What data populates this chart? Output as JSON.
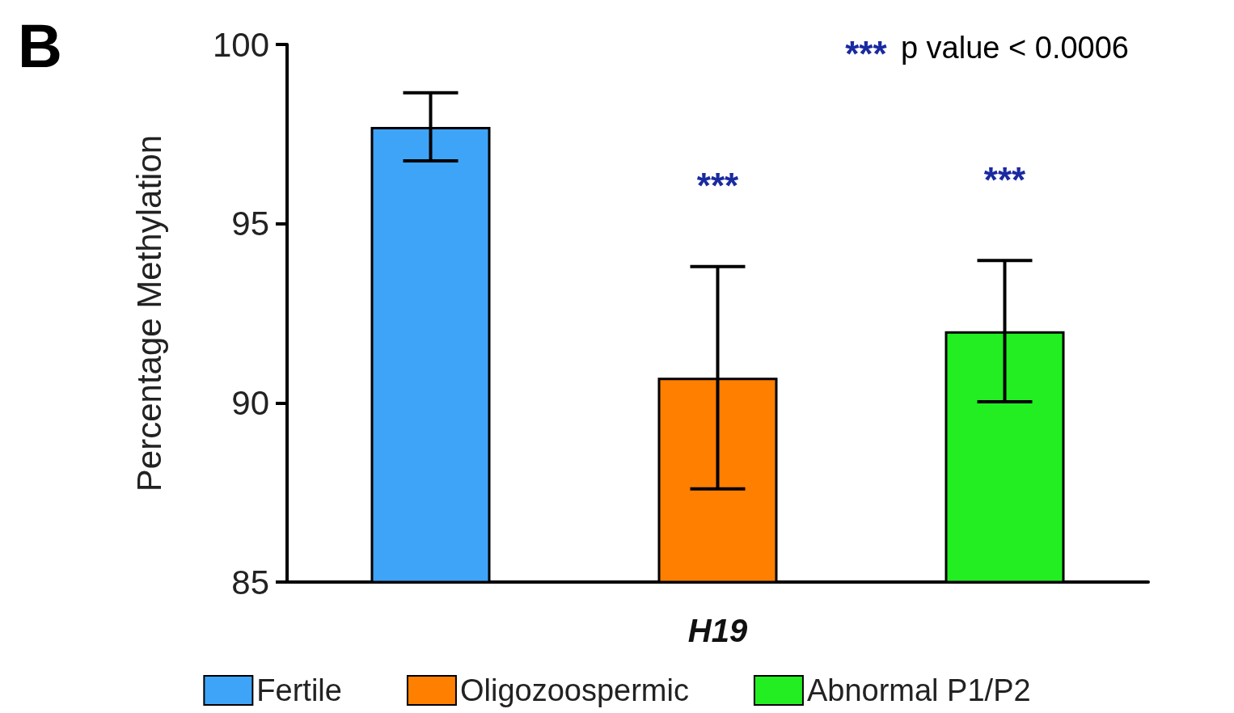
{
  "chart_data": {
    "type": "bar",
    "xlabel": "H19",
    "ylabel": "Percentage Methylation",
    "categories": [
      null,
      null,
      null
    ],
    "series": [
      {
        "name": "Fertile",
        "color": "#3ea4f8",
        "values": [
          97.7,
          null,
          null
        ],
        "errors": [
          0.95,
          null,
          null
        ]
      },
      {
        "name": "Oligozoospermic",
        "color": "#ff7f00",
        "values": [
          null,
          90.7,
          null
        ],
        "errors": [
          null,
          3.1,
          null
        ]
      },
      {
        "name": "Abnormal P1/P2",
        "color": "#22ee22",
        "values": [
          null,
          null,
          92.0
        ],
        "errors": [
          null,
          null,
          1.97
        ]
      }
    ],
    "ylim": [
      85,
      100
    ],
    "yticks": [
      85,
      90,
      95,
      100
    ],
    "grid": false,
    "legend": "bottom",
    "annotations": [
      "B",
      "*** p value < 0.0006",
      "***",
      "***"
    ]
  }
}
